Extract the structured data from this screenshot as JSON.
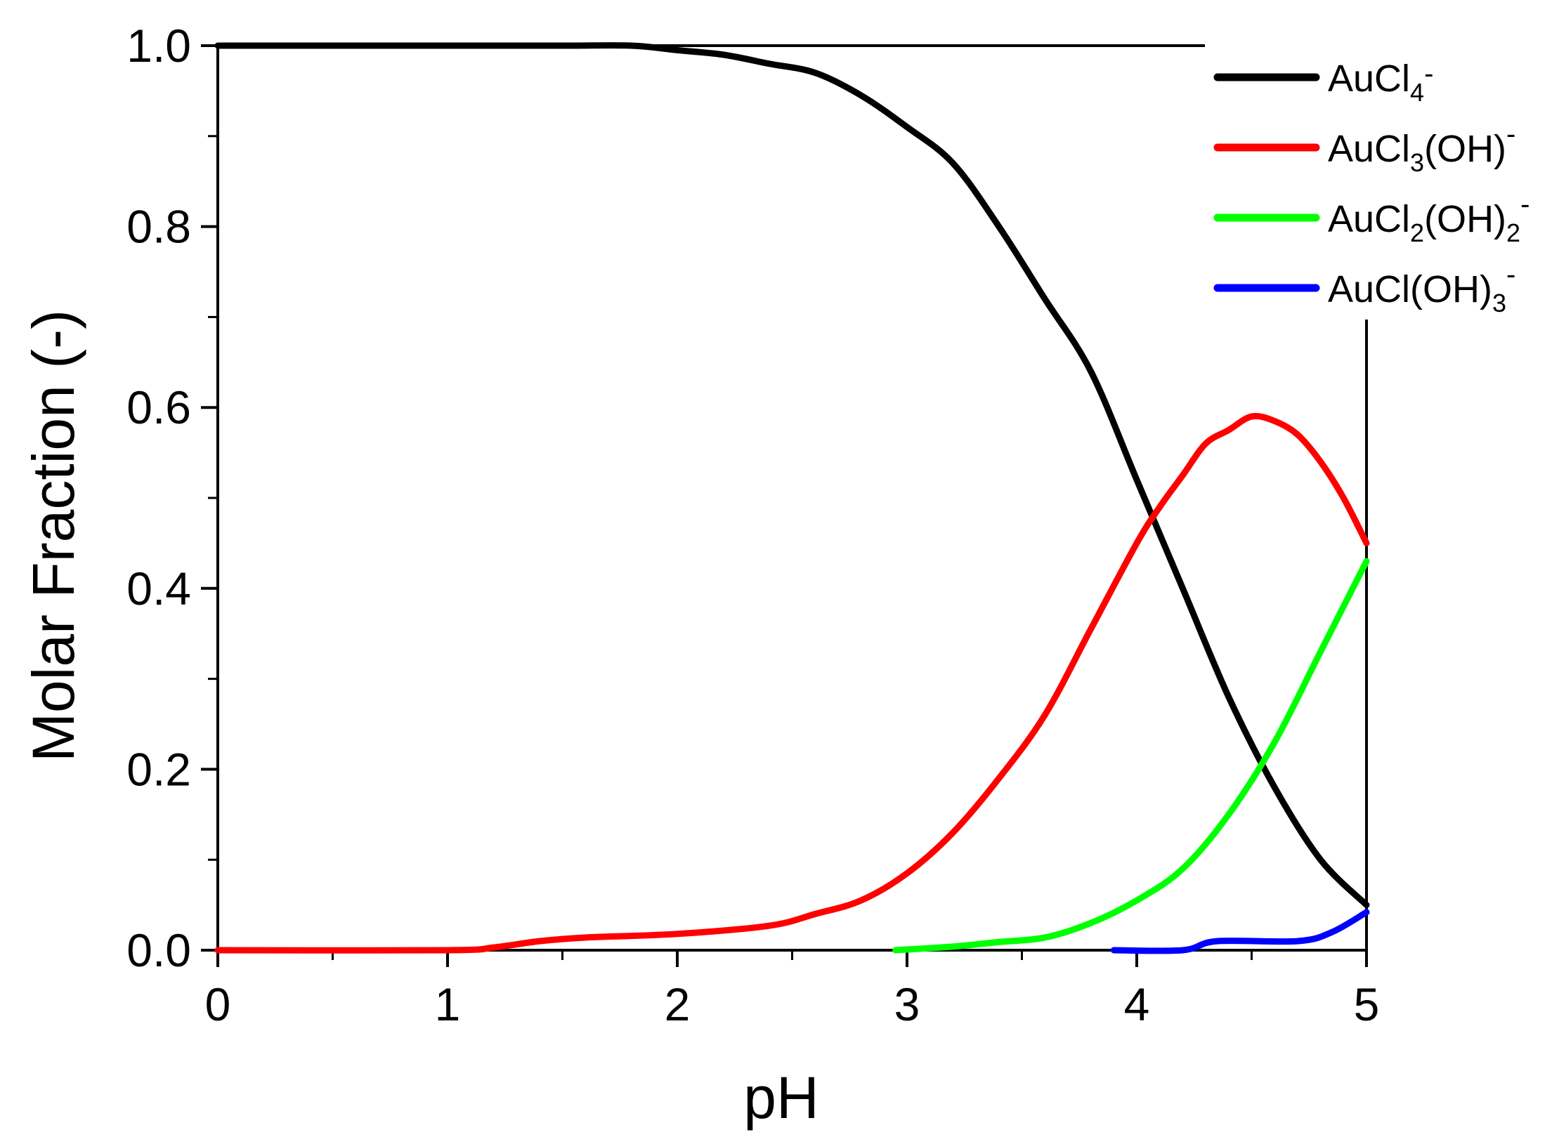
{
  "chart_data": {
    "type": "line",
    "xlabel": "pH",
    "ylabel": "Molar Fraction (-)",
    "xlim": [
      0,
      5
    ],
    "ylim": [
      0,
      1
    ],
    "xticks": [
      "0",
      "1",
      "2",
      "3",
      "4",
      "5"
    ],
    "yticks": [
      "0.0",
      "0.2",
      "0.4",
      "0.6",
      "0.8",
      "1.0"
    ],
    "grid": false,
    "legend_position": "top-right",
    "series": [
      {
        "name": "AuCl4-",
        "legend": {
          "base": "AuCl",
          "sub": "4",
          "after": "",
          "sup": "-"
        },
        "color": "#000000",
        "points": [
          [
            0,
            1.0
          ],
          [
            0.5,
            1.0
          ],
          [
            1.0,
            1.0
          ],
          [
            1.5,
            1.0
          ],
          [
            1.8,
            1.0
          ],
          [
            2.0,
            0.995
          ],
          [
            2.2,
            0.99
          ],
          [
            2.4,
            0.98
          ],
          [
            2.6,
            0.97
          ],
          [
            2.8,
            0.945
          ],
          [
            3.0,
            0.91
          ],
          [
            3.2,
            0.87
          ],
          [
            3.4,
            0.8
          ],
          [
            3.6,
            0.72
          ],
          [
            3.8,
            0.64
          ],
          [
            4.0,
            0.52
          ],
          [
            4.2,
            0.4
          ],
          [
            4.4,
            0.28
          ],
          [
            4.6,
            0.18
          ],
          [
            4.8,
            0.1
          ],
          [
            5.0,
            0.05
          ]
        ]
      },
      {
        "name": "AuCl3(OH)-",
        "legend": {
          "base": "AuCl",
          "sub": "3",
          "after": "(OH)",
          "sup": "-"
        },
        "color": "#ff0000",
        "points": [
          [
            0,
            0.0
          ],
          [
            1.0,
            0.0
          ],
          [
            1.2,
            0.003
          ],
          [
            1.4,
            0.01
          ],
          [
            1.6,
            0.014
          ],
          [
            2.0,
            0.018
          ],
          [
            2.4,
            0.027
          ],
          [
            2.6,
            0.04
          ],
          [
            2.8,
            0.055
          ],
          [
            3.0,
            0.085
          ],
          [
            3.2,
            0.13
          ],
          [
            3.4,
            0.19
          ],
          [
            3.6,
            0.26
          ],
          [
            3.8,
            0.355
          ],
          [
            4.0,
            0.45
          ],
          [
            4.1,
            0.49
          ],
          [
            4.2,
            0.525
          ],
          [
            4.3,
            0.56
          ],
          [
            4.4,
            0.575
          ],
          [
            4.5,
            0.59
          ],
          [
            4.6,
            0.585
          ],
          [
            4.7,
            0.57
          ],
          [
            4.8,
            0.54
          ],
          [
            4.9,
            0.5
          ],
          [
            5.0,
            0.45
          ]
        ]
      },
      {
        "name": "AuCl2(OH)2-",
        "legend": {
          "base": "AuCl",
          "sub": "2",
          "after": "(OH)",
          "sub2": "2",
          "sup": "-"
        },
        "color": "#00ff00",
        "points": [
          [
            2.95,
            0.0
          ],
          [
            3.2,
            0.004
          ],
          [
            3.4,
            0.009
          ],
          [
            3.6,
            0.014
          ],
          [
            3.8,
            0.03
          ],
          [
            4.0,
            0.055
          ],
          [
            4.2,
            0.09
          ],
          [
            4.4,
            0.15
          ],
          [
            4.6,
            0.23
          ],
          [
            4.8,
            0.33
          ],
          [
            5.0,
            0.43
          ]
        ]
      },
      {
        "name": "AuCl(OH)3-",
        "legend": {
          "base": "AuCl",
          "sub": "",
          "after": "(OH)",
          "sub2": "3",
          "sup": "-"
        },
        "color": "#0000ff",
        "points": [
          [
            3.9,
            0.0
          ],
          [
            4.2,
            0.0
          ],
          [
            4.35,
            0.01
          ],
          [
            4.7,
            0.01
          ],
          [
            4.85,
            0.02
          ],
          [
            5.0,
            0.042
          ]
        ]
      }
    ]
  }
}
